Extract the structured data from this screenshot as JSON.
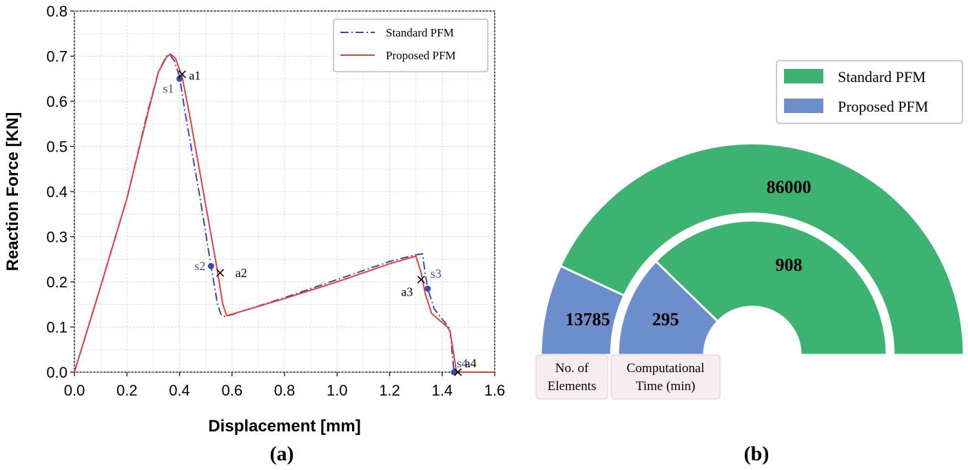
{
  "chart_data": [
    {
      "type": "line",
      "panel_label": "(a)",
      "xlabel": "Displacement [mm]",
      "ylabel": "Reaction Force [KN]",
      "xlim": [
        0.0,
        1.6
      ],
      "ylim": [
        0.0,
        0.8
      ],
      "xticks": [
        "0.0",
        "0.2",
        "0.4",
        "0.6",
        "0.8",
        "1.0",
        "1.2",
        "1.4",
        "1.6"
      ],
      "yticks": [
        "0.0",
        "0.1",
        "0.2",
        "0.3",
        "0.4",
        "0.5",
        "0.6",
        "0.7",
        "0.8"
      ],
      "grid": true,
      "legend_position": "top-right",
      "series": [
        {
          "name": "Standard PFM",
          "color": "#3c47b0",
          "style": "dash-dot",
          "points": [
            [
              0.0,
              0.0
            ],
            [
              0.1,
              0.19
            ],
            [
              0.2,
              0.385
            ],
            [
              0.28,
              0.58
            ],
            [
              0.32,
              0.665
            ],
            [
              0.35,
              0.7
            ],
            [
              0.365,
              0.702
            ],
            [
              0.38,
              0.69
            ],
            [
              0.4,
              0.655
            ],
            [
              0.42,
              0.58
            ],
            [
              0.48,
              0.38
            ],
            [
              0.52,
              0.235
            ],
            [
              0.545,
              0.15
            ],
            [
              0.56,
              0.125
            ],
            [
              0.575,
              0.123
            ],
            [
              0.8,
              0.165
            ],
            [
              1.0,
              0.205
            ],
            [
              1.2,
              0.245
            ],
            [
              1.3,
              0.26
            ],
            [
              1.325,
              0.262
            ],
            [
              1.335,
              0.22
            ],
            [
              1.345,
              0.185
            ],
            [
              1.37,
              0.14
            ],
            [
              1.41,
              0.11
            ],
            [
              1.43,
              0.095
            ],
            [
              1.445,
              0.0
            ],
            [
              1.6,
              0.0
            ]
          ]
        },
        {
          "name": "Proposed PFM",
          "color": "#ee3b3b",
          "style": "solid",
          "points": [
            [
              0.0,
              0.0
            ],
            [
              0.1,
              0.19
            ],
            [
              0.2,
              0.385
            ],
            [
              0.28,
              0.575
            ],
            [
              0.32,
              0.665
            ],
            [
              0.35,
              0.697
            ],
            [
              0.365,
              0.705
            ],
            [
              0.385,
              0.695
            ],
            [
              0.41,
              0.655
            ],
            [
              0.44,
              0.565
            ],
            [
              0.5,
              0.37
            ],
            [
              0.54,
              0.24
            ],
            [
              0.565,
              0.15
            ],
            [
              0.58,
              0.125
            ],
            [
              0.8,
              0.163
            ],
            [
              1.0,
              0.2
            ],
            [
              1.2,
              0.24
            ],
            [
              1.3,
              0.257
            ],
            [
              1.32,
              0.22
            ],
            [
              1.335,
              0.175
            ],
            [
              1.36,
              0.13
            ],
            [
              1.42,
              0.1
            ],
            [
              1.43,
              0.09
            ],
            [
              1.455,
              0.0
            ],
            [
              1.6,
              0.0
            ]
          ]
        }
      ],
      "annotations": [
        {
          "label": "s1",
          "x": 0.4,
          "y": 0.65,
          "series": "Standard PFM",
          "marker": "dot",
          "label_pos": "left-below"
        },
        {
          "label": "s2",
          "x": 0.52,
          "y": 0.235,
          "series": "Standard PFM",
          "marker": "dot",
          "label_pos": "left"
        },
        {
          "label": "s3",
          "x": 1.345,
          "y": 0.185,
          "series": "Standard PFM",
          "marker": "dot",
          "label_pos": "right-above"
        },
        {
          "label": "s4",
          "x": 1.445,
          "y": 0.0,
          "series": "Standard PFM",
          "marker": "dot",
          "label_pos": "right-above"
        },
        {
          "label": "a1",
          "x": 0.41,
          "y": 0.66,
          "series": "Proposed PFM",
          "marker": "x",
          "label_pos": "right"
        },
        {
          "label": "a2",
          "x": 0.555,
          "y": 0.22,
          "series": "Proposed PFM",
          "marker": "x",
          "label_pos": "right"
        },
        {
          "label": "a3",
          "x": 1.32,
          "y": 0.205,
          "series": "Proposed PFM",
          "marker": "x",
          "label_pos": "left-below"
        },
        {
          "label": "a4",
          "x": 1.46,
          "y": 0.0,
          "series": "Proposed PFM",
          "marker": "x",
          "label_pos": "right-above"
        }
      ]
    },
    {
      "type": "pie",
      "subtype": "nested-semicircle",
      "panel_label": "(b)",
      "legend_position": "top-right",
      "legend": [
        {
          "name": "Standard PFM",
          "color": "#3cb371"
        },
        {
          "name": "Proposed PFM",
          "color": "#6c8ecb"
        }
      ],
      "rings": [
        {
          "name": "No. of Elements",
          "label": "No. of Elements",
          "slices": [
            {
              "series": "Proposed PFM",
              "value": 13785,
              "label": "13785"
            },
            {
              "series": "Standard PFM",
              "value": 86000,
              "label": "86000"
            }
          ]
        },
        {
          "name": "Computational Time (min)",
          "label": "Computational Time (min)",
          "slices": [
            {
              "series": "Proposed PFM",
              "value": 295,
              "label": "295"
            },
            {
              "series": "Standard PFM",
              "value": 908,
              "label": "908"
            }
          ]
        }
      ]
    }
  ]
}
